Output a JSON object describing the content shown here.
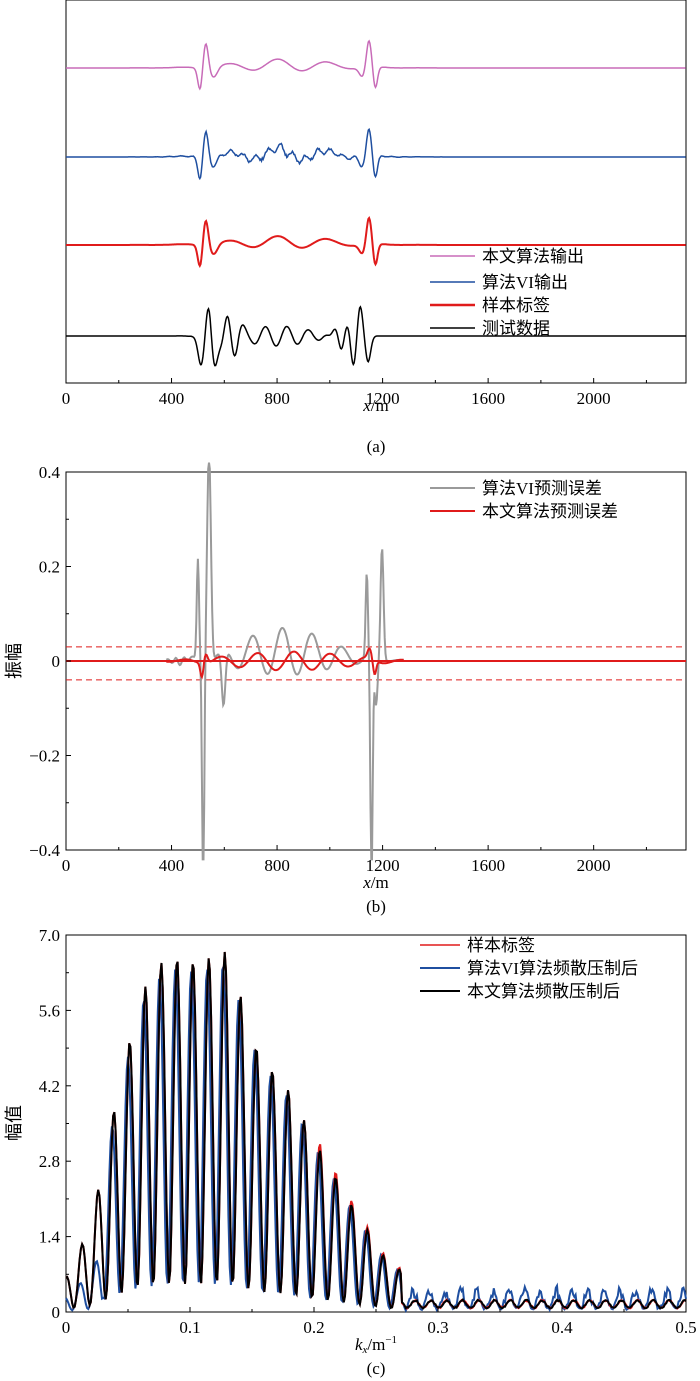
{
  "chart_data": [
    {
      "type": "line",
      "panel_label": "(a)",
      "xlabel": "x/m",
      "xlabel_var": "x",
      "xlabel_unit": "/m",
      "xlim": [
        0,
        2350
      ],
      "xticks": [
        "0",
        "400",
        "800",
        "1200",
        "1600",
        "2000"
      ],
      "xtick_values": [
        0,
        400,
        800,
        1200,
        1600,
        2000
      ],
      "note": "traces vertically offset; no y-axis tick labels",
      "legend_position": "bottom-right",
      "series": [
        {
          "name": "本文算法输出",
          "color": "#c86bb8",
          "offset": 3
        },
        {
          "name": "算法VI输出",
          "color": "#1f4fa0",
          "offset": 2
        },
        {
          "name": "样本标签",
          "color": "#e01b1b",
          "offset": 1
        },
        {
          "name": "测试数据",
          "color": "#000000",
          "offset": 0
        }
      ]
    },
    {
      "type": "line",
      "panel_label": "(b)",
      "xlabel": "x/m",
      "xlabel_var": "x",
      "xlabel_unit": "/m",
      "ylabel": "振幅",
      "xlim": [
        0,
        2350
      ],
      "ylim": [
        -0.4,
        0.4
      ],
      "xticks": [
        "0",
        "400",
        "800",
        "1200",
        "1600",
        "2000"
      ],
      "xtick_values": [
        0,
        400,
        800,
        1200,
        1600,
        2000
      ],
      "yticks": [
        "−0.4",
        "−0.2",
        "0",
        "0.2",
        "0.4"
      ],
      "ytick_values": [
        -0.4,
        -0.2,
        0,
        0.2,
        0.4
      ],
      "reference_lines": [
        0.03,
        -0.04
      ],
      "legend_position": "top-right",
      "series": [
        {
          "name": "算法VI预测误差",
          "color": "#9a9a9a"
        },
        {
          "name": "本文算法预测误差",
          "color": "#e01b1b"
        }
      ]
    },
    {
      "type": "line",
      "panel_label": "(c)",
      "xlabel": "kx/m−1",
      "xlabel_var": "k",
      "xlabel_sub": "x",
      "xlabel_unit": "/m",
      "xlabel_sup": "−1",
      "ylabel": "幅值",
      "xlim": [
        0,
        0.5
      ],
      "ylim": [
        0,
        7.0
      ],
      "xticks": [
        "0",
        "0.1",
        "0.2",
        "0.3",
        "0.4",
        "0.5"
      ],
      "xtick_values": [
        0,
        0.1,
        0.2,
        0.3,
        0.4,
        0.5
      ],
      "yticks": [
        "0",
        "1.4",
        "2.8",
        "4.2",
        "5.6",
        "7.0"
      ],
      "ytick_values": [
        0,
        1.4,
        2.8,
        4.2,
        5.6,
        7.0
      ],
      "legend_position": "top-right",
      "envelope_peaks": [
        [
          0.02,
          1.6
        ],
        [
          0.04,
          3.9
        ],
        [
          0.06,
          5.9
        ],
        [
          0.08,
          6.6
        ],
        [
          0.105,
          6.5
        ],
        [
          0.13,
          6.7
        ],
        [
          0.155,
          4.8
        ],
        [
          0.18,
          4.1
        ],
        [
          0.2,
          3.2
        ],
        [
          0.23,
          2.0
        ],
        [
          0.26,
          0.9
        ],
        [
          0.3,
          0.4
        ],
        [
          0.4,
          0.25
        ],
        [
          0.5,
          0.15
        ]
      ],
      "series": [
        {
          "name": "样本标签",
          "color": "#e01b1b"
        },
        {
          "name": "算法VI算法频散压制后",
          "color": "#1f4fa0"
        },
        {
          "name": "本文算法频散压制后",
          "color": "#000000"
        }
      ]
    }
  ]
}
